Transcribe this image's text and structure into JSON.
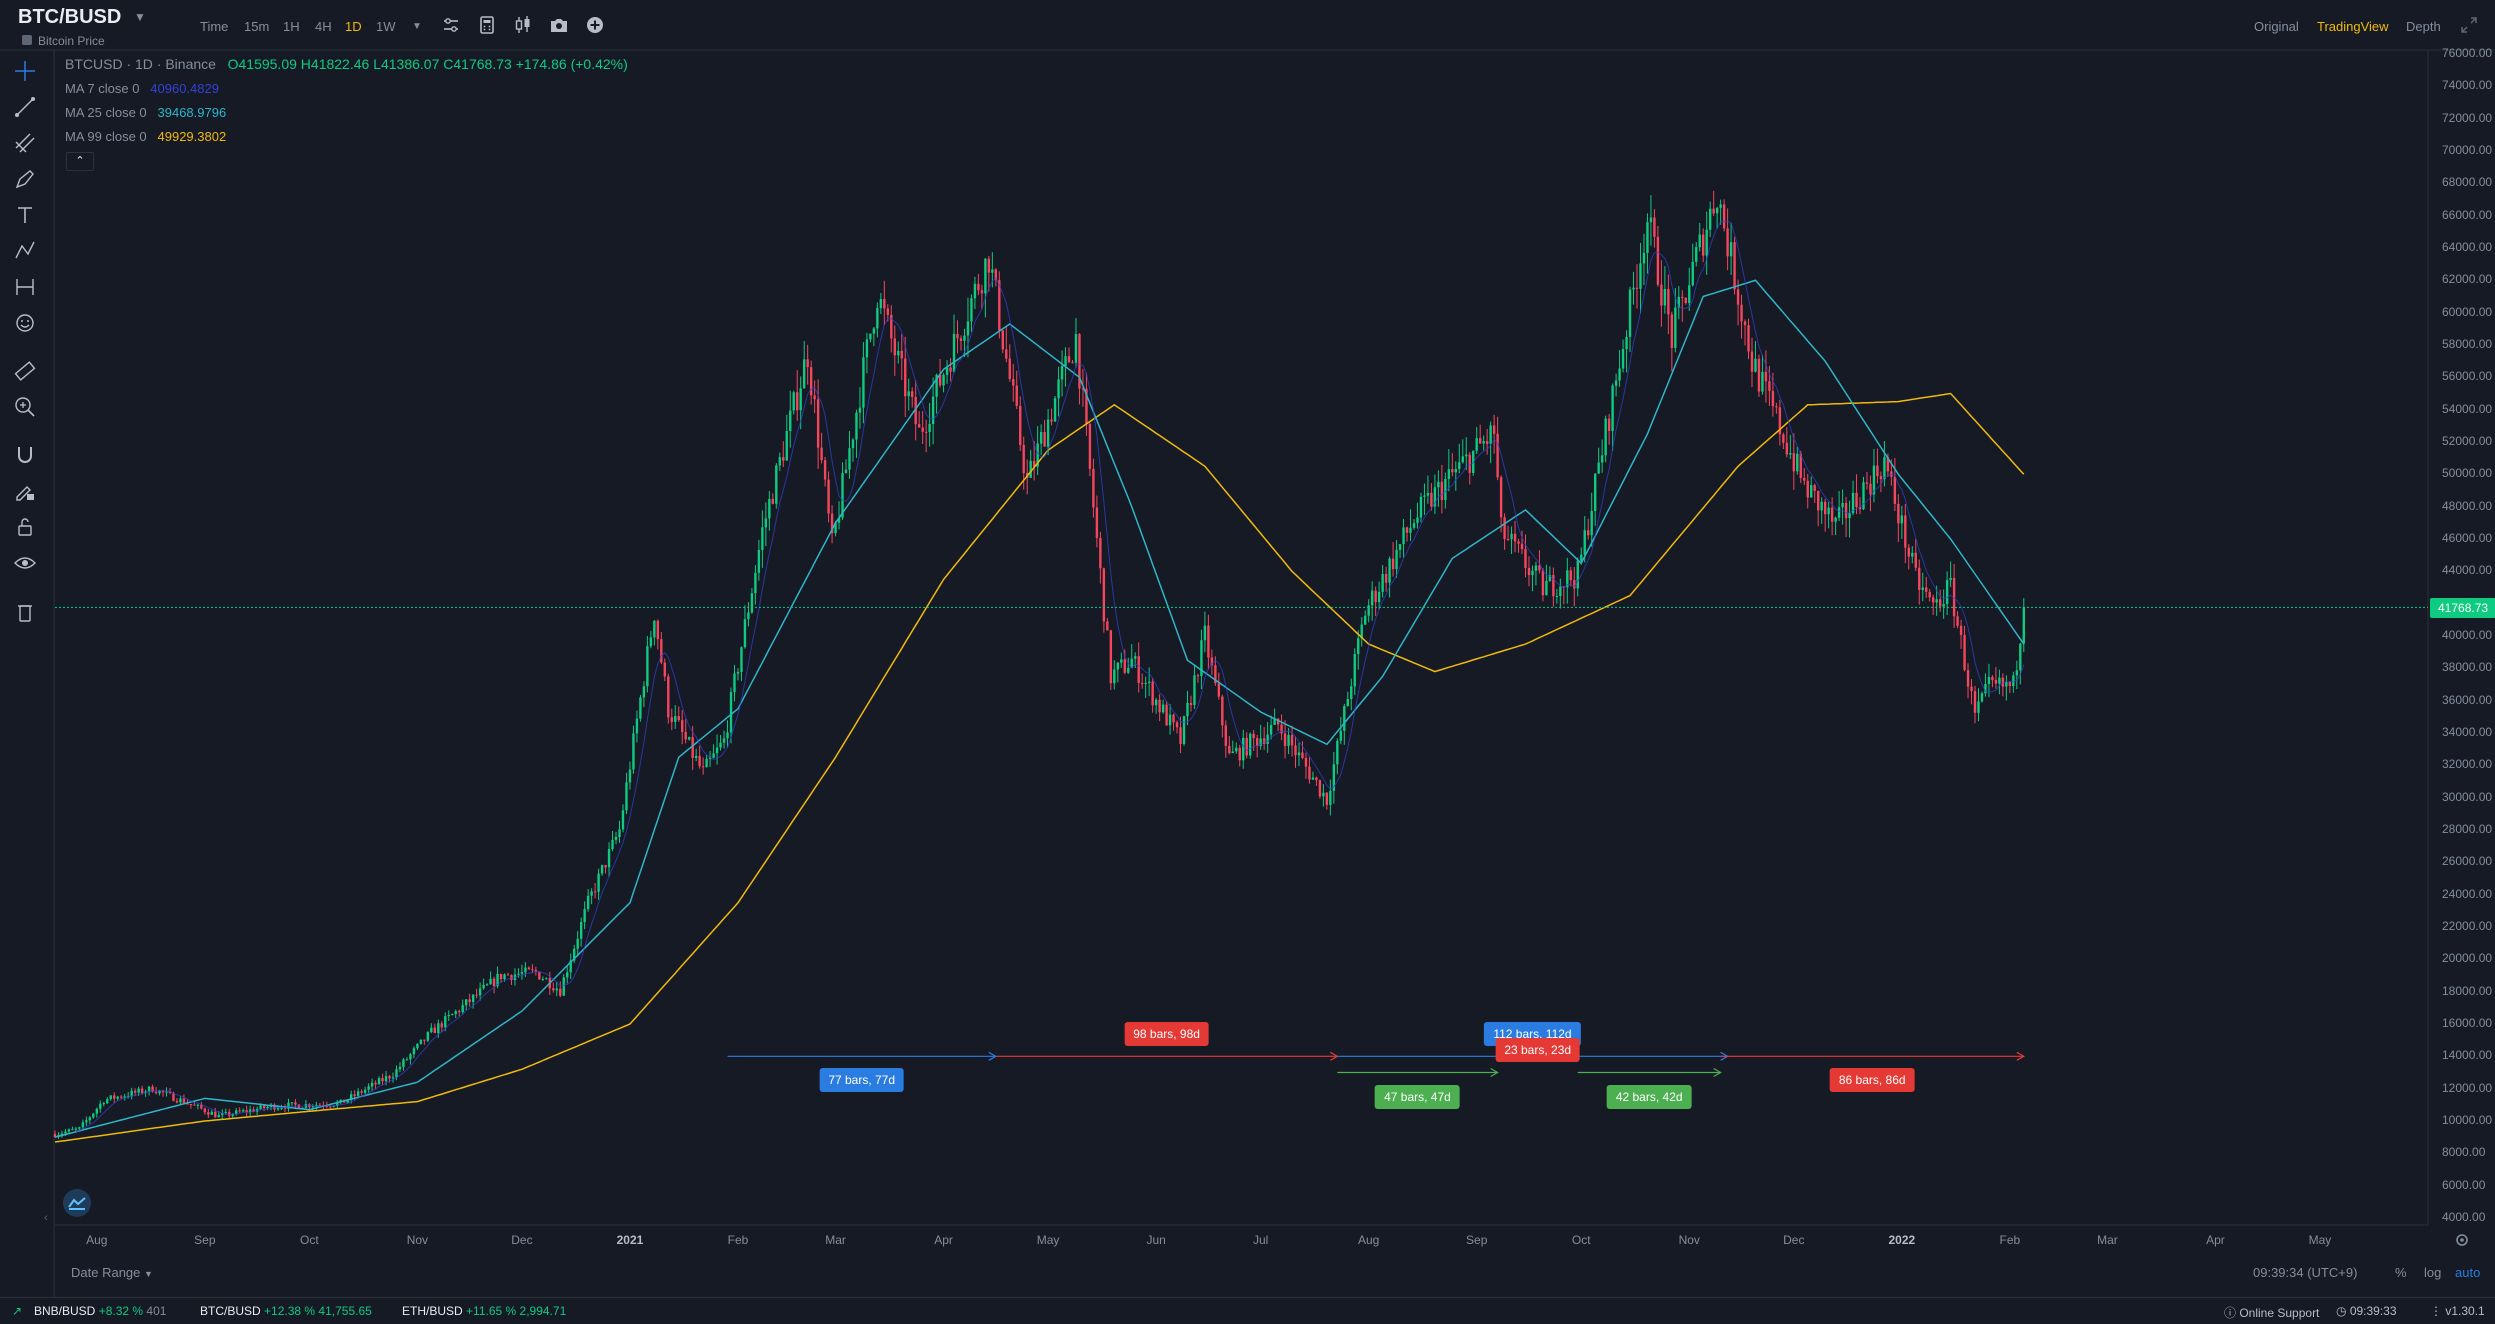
{
  "header": {
    "symbol": "BTC/BUSD",
    "subtitle": "Bitcoin Price",
    "timeframes": [
      "Time",
      "15m",
      "1H",
      "4H",
      "1D",
      "1W"
    ],
    "active_timeframe": "1D",
    "views": [
      "Original",
      "TradingView",
      "Depth"
    ],
    "active_view": "TradingView"
  },
  "legend": {
    "title": "BTCUSD · 1D · Binance",
    "open": "O41595.09",
    "high": "H41822.46",
    "low": "L41386.07",
    "close": "C41768.73",
    "change": "+174.86 (+0.42%)",
    "ma7_label": "MA 7 close 0",
    "ma7_value": "40960.4829",
    "ma25_label": "MA 25 close 0",
    "ma25_value": "39468.9796",
    "ma99_label": "MA 99 close 0",
    "ma99_value": "49929.3802"
  },
  "colors": {
    "background": "#161a25",
    "up": "#0ecb81",
    "down": "#f6465d",
    "ma7": "#3243d6",
    "ma25": "#2fb5c9",
    "ma99": "#f0b90b",
    "blue_range": "#2a7ce0",
    "red_range": "#e53935",
    "green_range": "#4caf50"
  },
  "price_axis": {
    "ticks": [
      "76000.00",
      "74000.00",
      "72000.00",
      "70000.00",
      "68000.00",
      "66000.00",
      "64000.00",
      "62000.00",
      "60000.00",
      "58000.00",
      "56000.00",
      "54000.00",
      "52000.00",
      "50000.00",
      "48000.00",
      "46000.00",
      "44000.00",
      "42000.00",
      "40000.00",
      "38000.00",
      "36000.00",
      "34000.00",
      "32000.00",
      "30000.00",
      "28000.00",
      "26000.00",
      "24000.00",
      "22000.00",
      "20000.00",
      "18000.00",
      "16000.00",
      "14000.00",
      "12000.00",
      "10000.00",
      "8000.00",
      "6000.00",
      "4000.00"
    ],
    "last_price": "41768.73"
  },
  "time_axis": {
    "labels": [
      "Aug",
      "Sep",
      "Oct",
      "Nov",
      "Dec",
      "2021",
      "Feb",
      "Mar",
      "Apr",
      "May",
      "Jun",
      "Jul",
      "Aug",
      "Sep",
      "Oct",
      "Nov",
      "Dec",
      "2022",
      "Feb",
      "Mar",
      "Apr",
      "May"
    ]
  },
  "ranges": [
    {
      "label": "77 bars, 77d",
      "color": "blue"
    },
    {
      "label": "98 bars, 98d",
      "color": "red"
    },
    {
      "label": "112 bars, 112d",
      "color": "blue"
    },
    {
      "label": "23 bars, 23d",
      "color": "red"
    },
    {
      "label": "47 bars, 47d",
      "color": "green"
    },
    {
      "label": "42 bars, 42d",
      "color": "green"
    },
    {
      "label": "86 bars, 86d",
      "color": "red"
    }
  ],
  "footer": {
    "date_range": "Date Range",
    "clock": "09:39:34 (UTC+9)",
    "scale_options": [
      "%",
      "log",
      "auto"
    ],
    "active_scale": "auto"
  },
  "status_bar": {
    "tickers": [
      {
        "pair": "BNB/BUSD",
        "change": "+8.32 %",
        "price": "401"
      },
      {
        "pair": "BTC/BUSD",
        "change": "+12.38 %",
        "price": "41,755.65"
      },
      {
        "pair": "ETH/BUSD",
        "change": "+11.65 %",
        "price": "2,994.71"
      }
    ],
    "support": "Online Support",
    "time": "09:39:33",
    "version": "v1.30.1"
  },
  "chart_data": {
    "type": "candlestick",
    "series_names": [
      "MA 7 close 0",
      "MA 25 close 0",
      "MA 99 close 0"
    ],
    "ylim": [
      4000,
      76000
    ],
    "xlim": [
      "2020-07-20",
      "2022-06-01"
    ],
    "last_price": 41768.73,
    "close_anchors": [
      [
        "2020-07-20",
        9200
      ],
      [
        "2020-07-27",
        9500
      ],
      [
        "2020-08-03",
        11300
      ],
      [
        "2020-08-17",
        12000
      ],
      [
        "2020-09-05",
        10300
      ],
      [
        "2020-09-20",
        10900
      ],
      [
        "2020-10-10",
        11100
      ],
      [
        "2020-10-25",
        12900
      ],
      [
        "2020-11-05",
        15500
      ],
      [
        "2020-11-25",
        19000
      ],
      [
        "2020-12-05",
        19200
      ],
      [
        "2020-12-12",
        18100
      ],
      [
        "2020-12-20",
        23500
      ],
      [
        "2020-12-29",
        28000
      ],
      [
        "2021-01-08",
        41500
      ],
      [
        "2021-01-12",
        35500
      ],
      [
        "2021-01-22",
        31500
      ],
      [
        "2021-01-28",
        33500
      ],
      [
        "2021-02-08",
        46500
      ],
      [
        "2021-02-21",
        57500
      ],
      [
        "2021-02-28",
        45500
      ],
      [
        "2021-03-13",
        61200
      ],
      [
        "2021-03-25",
        52500
      ],
      [
        "2021-04-14",
        63500
      ],
      [
        "2021-04-25",
        49500
      ],
      [
        "2021-05-09",
        58500
      ],
      [
        "2021-05-19",
        37500
      ],
      [
        "2021-05-25",
        38500
      ],
      [
        "2021-06-08",
        33500
      ],
      [
        "2021-06-15",
        40000
      ],
      [
        "2021-06-22",
        32500
      ],
      [
        "2021-07-06",
        34500
      ],
      [
        "2021-07-20",
        29900
      ],
      [
        "2021-07-31",
        41500
      ],
      [
        "2021-08-14",
        47200
      ],
      [
        "2021-08-23",
        49500
      ],
      [
        "2021-09-06",
        52600
      ],
      [
        "2021-09-08",
        46500
      ],
      [
        "2021-09-20",
        43000
      ],
      [
        "2021-09-30",
        43800
      ],
      [
        "2021-10-20",
        65800
      ],
      [
        "2021-10-27",
        58500
      ],
      [
        "2021-11-09",
        67500
      ],
      [
        "2021-11-19",
        57000
      ],
      [
        "2021-12-04",
        49300
      ],
      [
        "2021-12-13",
        46800
      ],
      [
        "2021-12-27",
        50800
      ],
      [
        "2022-01-05",
        43500
      ],
      [
        "2022-01-10",
        41800
      ],
      [
        "2022-01-15",
        43000
      ],
      [
        "2022-01-22",
        35000
      ],
      [
        "2022-01-26",
        36800
      ],
      [
        "2022-02-02",
        36900
      ],
      [
        "2022-02-05",
        41768
      ]
    ],
    "ma_anchors": {
      "ma25": [
        [
          "2020-07-20",
          9000
        ],
        [
          "2020-09-01",
          11400
        ],
        [
          "2020-10-01",
          10700
        ],
        [
          "2020-11-01",
          12400
        ],
        [
          "2020-12-01",
          16800
        ],
        [
          "2021-01-01",
          23500
        ],
        [
          "2021-01-15",
          32500
        ],
        [
          "2021-02-01",
          35500
        ],
        [
          "2021-03-01",
          47000
        ],
        [
          "2021-04-01",
          56500
        ],
        [
          "2021-04-20",
          59300
        ],
        [
          "2021-05-10",
          56000
        ],
        [
          "2021-05-25",
          48000
        ],
        [
          "2021-06-10",
          38500
        ],
        [
          "2021-07-01",
          35300
        ],
        [
          "2021-07-20",
          33300
        ],
        [
          "2021-08-05",
          37500
        ],
        [
          "2021-08-25",
          44800
        ],
        [
          "2021-09-15",
          47800
        ],
        [
          "2021-10-01",
          44500
        ],
        [
          "2021-10-20",
          52500
        ],
        [
          "2021-11-05",
          61000
        ],
        [
          "2021-11-20",
          62000
        ],
        [
          "2021-12-10",
          57000
        ],
        [
          "2021-12-31",
          50000
        ],
        [
          "2022-01-15",
          46000
        ],
        [
          "2022-02-05",
          39500
        ]
      ],
      "ma99": [
        [
          "2020-07-20",
          8700
        ],
        [
          "2020-09-01",
          10000
        ],
        [
          "2020-10-01",
          10600
        ],
        [
          "2020-11-01",
          11200
        ],
        [
          "2020-12-01",
          13200
        ],
        [
          "2021-01-01",
          16000
        ],
        [
          "2021-02-01",
          23500
        ],
        [
          "2021-03-01",
          32500
        ],
        [
          "2021-04-01",
          43500
        ],
        [
          "2021-05-01",
          51500
        ],
        [
          "2021-05-20",
          54300
        ],
        [
          "2021-06-15",
          50500
        ],
        [
          "2021-07-10",
          44000
        ],
        [
          "2021-08-01",
          39500
        ],
        [
          "2021-08-20",
          37800
        ],
        [
          "2021-09-15",
          39500
        ],
        [
          "2021-10-15",
          42500
        ],
        [
          "2021-11-15",
          50500
        ],
        [
          "2021-12-05",
          54300
        ],
        [
          "2021-12-31",
          54500
        ],
        [
          "2022-01-15",
          55000
        ],
        [
          "2022-02-05",
          50000
        ]
      ]
    },
    "range_arrows": [
      {
        "label": "77 bars, 77d",
        "start": "2021-01-29",
        "end": "2021-04-16",
        "price": 14000,
        "color": "blue"
      },
      {
        "label": "98 bars, 98d",
        "start": "2021-04-16",
        "end": "2021-07-23",
        "price": 14000,
        "color": "red"
      },
      {
        "label": "112 bars, 112d",
        "start": "2021-07-23",
        "end": "2021-11-12",
        "price": 14000,
        "color": "blue"
      },
      {
        "label": "23 bars, 23d",
        "start": "2021-09-07",
        "end": "2021-09-30",
        "price": 14000,
        "color": "red"
      },
      {
        "label": "47 bars, 47d",
        "start": "2021-07-23",
        "end": "2021-09-07",
        "price": 13000,
        "color": "green"
      },
      {
        "label": "42 bars, 42d",
        "start": "2021-09-30",
        "end": "2021-11-10",
        "price": 13000,
        "color": "green"
      },
      {
        "label": "86 bars, 86d",
        "start": "2021-11-10",
        "end": "2022-02-05",
        "price": 14000,
        "color": "red"
      }
    ],
    "time_labels": [
      [
        "2020-08-01",
        "Aug"
      ],
      [
        "2020-09-01",
        "Sep"
      ],
      [
        "2020-10-01",
        "Oct"
      ],
      [
        "2020-11-01",
        "Nov"
      ],
      [
        "2020-12-01",
        "Dec"
      ],
      [
        "2021-01-01",
        "2021"
      ],
      [
        "2021-02-01",
        "Feb"
      ],
      [
        "2021-03-01",
        "Mar"
      ],
      [
        "2021-04-01",
        "Apr"
      ],
      [
        "2021-05-01",
        "May"
      ],
      [
        "2021-06-01",
        "Jun"
      ],
      [
        "2021-07-01",
        "Jul"
      ],
      [
        "2021-08-01",
        "Aug"
      ],
      [
        "2021-09-01",
        "Sep"
      ],
      [
        "2021-10-01",
        "Oct"
      ],
      [
        "2021-11-01",
        "Nov"
      ],
      [
        "2021-12-01",
        "Dec"
      ],
      [
        "2022-01-01",
        "2022"
      ],
      [
        "2022-02-01",
        "Feb"
      ],
      [
        "2022-03-01",
        "Mar"
      ],
      [
        "2022-04-01",
        "Apr"
      ],
      [
        "2022-05-01",
        "May"
      ]
    ]
  }
}
